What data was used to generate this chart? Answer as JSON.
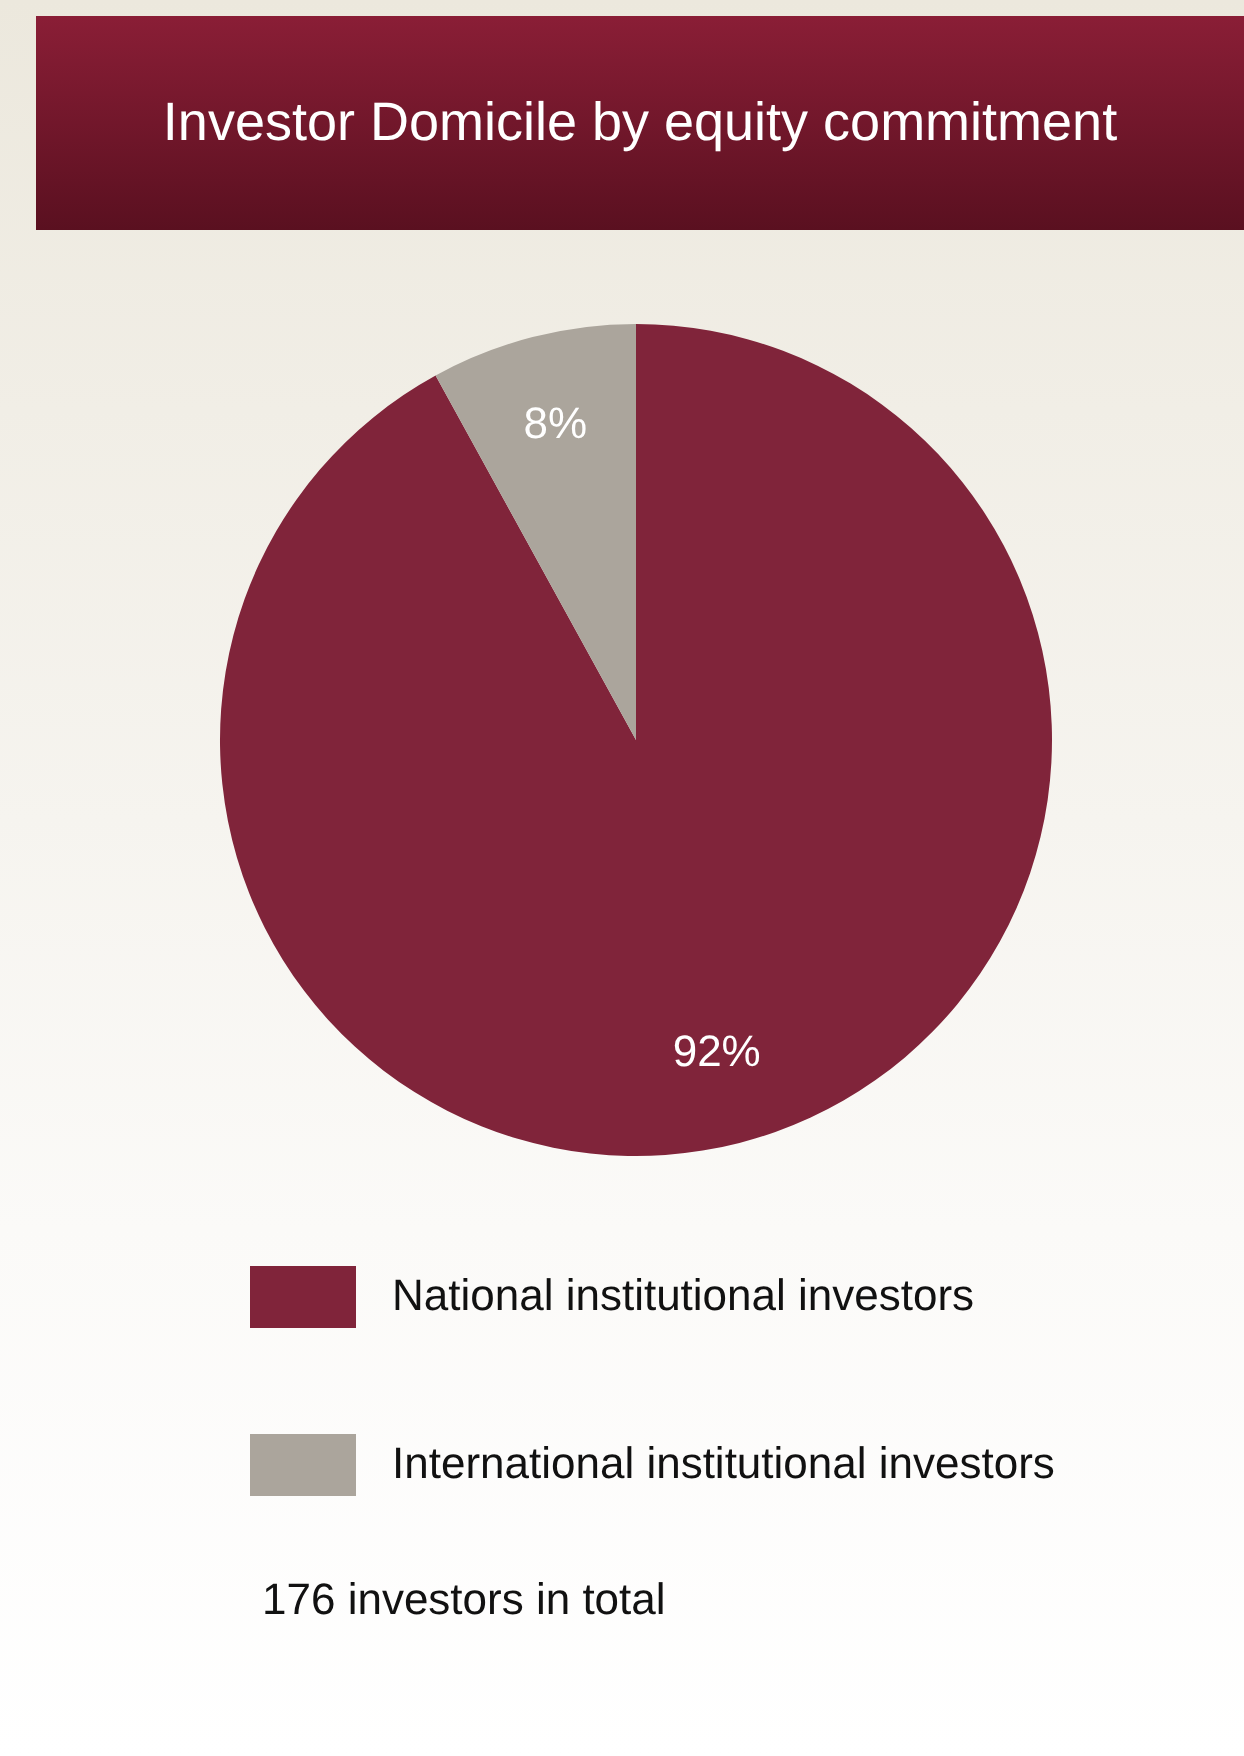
{
  "chart_data": {
    "type": "pie",
    "title": "Investor Domicile by equity commitment",
    "categories": [
      "National institutional investors",
      "International institutional investors"
    ],
    "values": [
      92,
      8
    ],
    "colors": [
      "#80243a",
      "#aba59c"
    ],
    "value_labels": [
      "92%",
      "8%"
    ],
    "legend": "bottom",
    "annotations": [
      "176 investors in total"
    ]
  }
}
